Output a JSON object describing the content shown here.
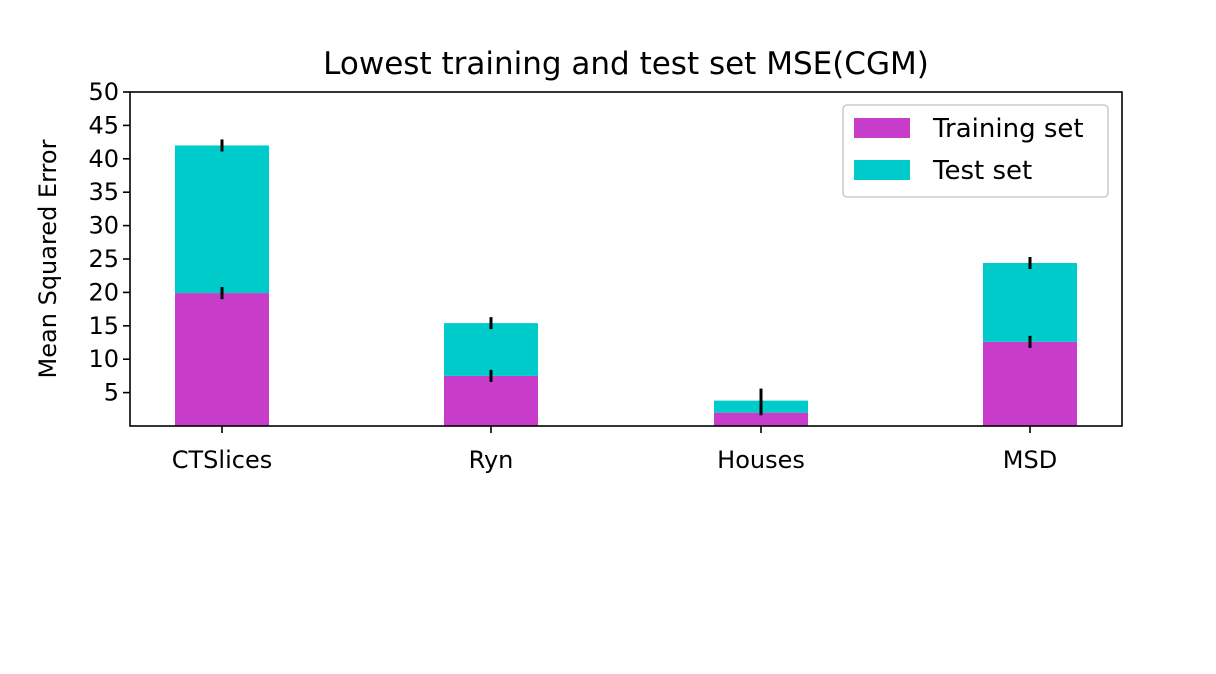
{
  "chart_data": {
    "type": "bar",
    "stacked": true,
    "title": "Lowest training and test set MSE(CGM)",
    "xlabel": "",
    "ylabel": "Mean Squared Error",
    "categories": [
      "CTSlices",
      "Ryn",
      "Houses",
      "MSD"
    ],
    "ylim": [
      0,
      50
    ],
    "yticks": [
      5,
      10,
      15,
      20,
      25,
      30,
      35,
      40,
      45,
      50
    ],
    "grid": false,
    "legend_position": "top-right",
    "series": [
      {
        "name": "Training set",
        "color": "#c73cc8",
        "values": [
          19.9,
          7.5,
          2.0,
          12.6
        ],
        "error": [
          0.9,
          0.9,
          0.4,
          0.9
        ]
      },
      {
        "name": "Test set",
        "color": "#00cbcb",
        "values": [
          22.1,
          7.9,
          1.8,
          11.8
        ],
        "error": [
          0.9,
          0.9,
          1.8,
          0.9
        ]
      }
    ]
  }
}
